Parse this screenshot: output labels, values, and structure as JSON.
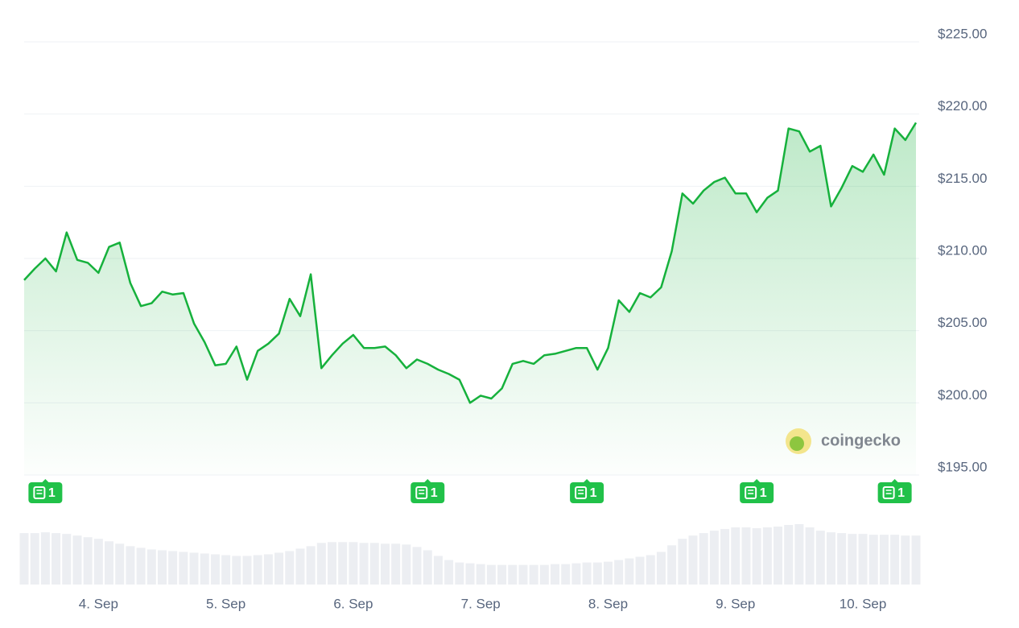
{
  "chart_data": {
    "type": "line",
    "categories": [
      null,
      null,
      null,
      null,
      null,
      null,
      null,
      "4. Sep",
      null,
      null,
      null,
      null,
      null,
      null,
      null,
      null,
      null,
      null,
      null,
      "5. Sep",
      null,
      null,
      null,
      null,
      null,
      null,
      null,
      null,
      null,
      null,
      null,
      "6. Sep",
      null,
      null,
      null,
      null,
      null,
      null,
      null,
      null,
      null,
      null,
      null,
      "7. Sep",
      null,
      null,
      null,
      null,
      null,
      null,
      null,
      null,
      null,
      null,
      null,
      "8. Sep",
      null,
      null,
      null,
      null,
      null,
      null,
      null,
      null,
      null,
      null,
      null,
      "9. Sep",
      null,
      null,
      null,
      null,
      null,
      null,
      null,
      null,
      null,
      null,
      null,
      "10. Sep",
      null,
      null,
      null,
      null,
      null
    ],
    "values": [
      208.5,
      209.3,
      210.0,
      209.1,
      211.8,
      209.9,
      209.7,
      209.0,
      210.8,
      211.1,
      208.3,
      206.7,
      206.9,
      207.7,
      207.5,
      207.6,
      205.5,
      204.2,
      202.6,
      202.7,
      203.9,
      201.6,
      203.6,
      204.1,
      204.8,
      207.2,
      206.0,
      208.9,
      202.4,
      203.3,
      204.1,
      204.7,
      203.8,
      203.8,
      203.9,
      203.3,
      202.4,
      203.0,
      202.7,
      202.3,
      202.0,
      201.6,
      200.0,
      200.5,
      200.3,
      201.0,
      202.7,
      202.9,
      202.7,
      203.3,
      203.4,
      203.6,
      203.8,
      203.8,
      202.3,
      203.8,
      207.1,
      206.3,
      207.6,
      207.3,
      208.0,
      210.5,
      214.5,
      213.8,
      214.7,
      215.3,
      215.6,
      214.5,
      214.5,
      213.2,
      214.2,
      214.7,
      219.0,
      218.8,
      217.4,
      217.8,
      213.6,
      214.9,
      216.4,
      216.0,
      217.2,
      215.8,
      219.0,
      218.2,
      219.4
    ],
    "color": "#16b13c",
    "ylim": [
      195,
      225
    ],
    "yticks": [
      {
        "value": 195,
        "label": "$195.00"
      },
      {
        "value": 200,
        "label": "$200.00"
      },
      {
        "value": 205,
        "label": "$205.00"
      },
      {
        "value": 210,
        "label": "$210.00"
      },
      {
        "value": 215,
        "label": "$215.00"
      },
      {
        "value": 220,
        "label": "$220.00"
      },
      {
        "value": 225,
        "label": "$225.00"
      }
    ],
    "grid": true,
    "volume": {
      "color": "#eceef2",
      "values": [
        63,
        63,
        64,
        63,
        62,
        60,
        58,
        56,
        53,
        50,
        47,
        45,
        43,
        42,
        41,
        40,
        39,
        38,
        37,
        36,
        35,
        35,
        36,
        37,
        39,
        41,
        44,
        47,
        51,
        52,
        52,
        52,
        51,
        51,
        50,
        50,
        49,
        46,
        42,
        35,
        30,
        27,
        26,
        25,
        24,
        24,
        24,
        24,
        24,
        24,
        25,
        25,
        26,
        27,
        27,
        28,
        30,
        32,
        34,
        36,
        40,
        48,
        56,
        60,
        63,
        66,
        68,
        70,
        70,
        69,
        70,
        71,
        73,
        74,
        70,
        66,
        64,
        63,
        62,
        62,
        61,
        61,
        61,
        60,
        60
      ]
    },
    "news": [
      {
        "index": 2,
        "count": 1
      },
      {
        "index": 38,
        "count": 1
      },
      {
        "index": 53,
        "count": 1
      },
      {
        "index": 69,
        "count": 1
      },
      {
        "index": 82,
        "count": 1
      }
    ],
    "watermark": "coingecko"
  }
}
